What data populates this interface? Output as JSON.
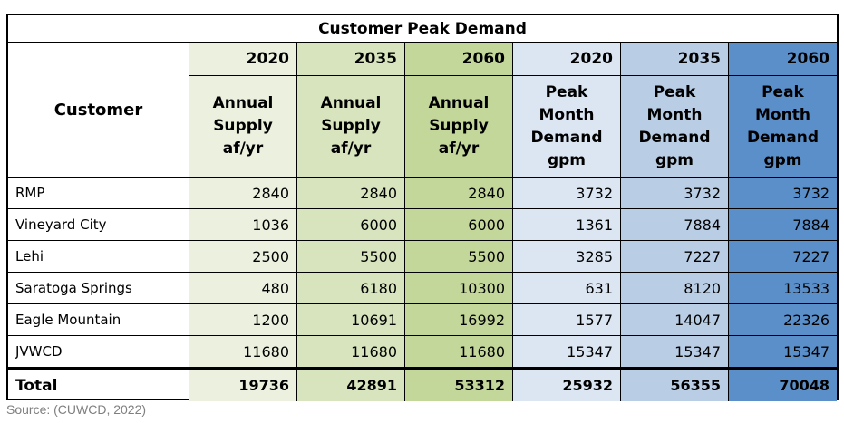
{
  "table": {
    "title": "Customer Peak Demand",
    "customer_header": "Customer",
    "year_headers": [
      "2020",
      "2035",
      "2060",
      "2020",
      "2035",
      "2060"
    ],
    "sub_headers": [
      [
        "Annual",
        "Supply",
        "af/yr"
      ],
      [
        "Annual",
        "Supply",
        "af/yr"
      ],
      [
        "Annual",
        "Supply",
        "af/yr"
      ],
      [
        "Peak",
        "Month",
        "Demand",
        "gpm"
      ],
      [
        "Peak",
        "Month",
        "Demand",
        "gpm"
      ],
      [
        "Peak",
        "Month",
        "Demand",
        "gpm"
      ]
    ],
    "rows": [
      {
        "name": "RMP",
        "values": [
          "2840",
          "2840",
          "2840",
          "3732",
          "3732",
          "3732"
        ]
      },
      {
        "name": "Vineyard City",
        "values": [
          "1036",
          "6000",
          "6000",
          "1361",
          "7884",
          "7884"
        ]
      },
      {
        "name": "Lehi",
        "values": [
          "2500",
          "5500",
          "5500",
          "3285",
          "7227",
          "7227"
        ]
      },
      {
        "name": "Saratoga Springs",
        "values": [
          "480",
          "6180",
          "10300",
          "631",
          "8120",
          "13533"
        ]
      },
      {
        "name": "Eagle Mountain",
        "values": [
          "1200",
          "10691",
          "16992",
          "1577",
          "14047",
          "22326"
        ]
      },
      {
        "name": "JVWCD",
        "values": [
          "11680",
          "11680",
          "11680",
          "15347",
          "15347",
          "15347"
        ]
      }
    ],
    "total": {
      "name": "Total",
      "values": [
        "19736",
        "42891",
        "53312",
        "25932",
        "56355",
        "70048"
      ]
    }
  },
  "source": "Source: (CUWCD, 2022)",
  "colors": {
    "col1": "#ebf1de",
    "col2": "#d7e4bd",
    "col3": "#c4d79b",
    "col4": "#dce6f2",
    "col5": "#b9cde5",
    "col6": "#5b8fc9"
  }
}
